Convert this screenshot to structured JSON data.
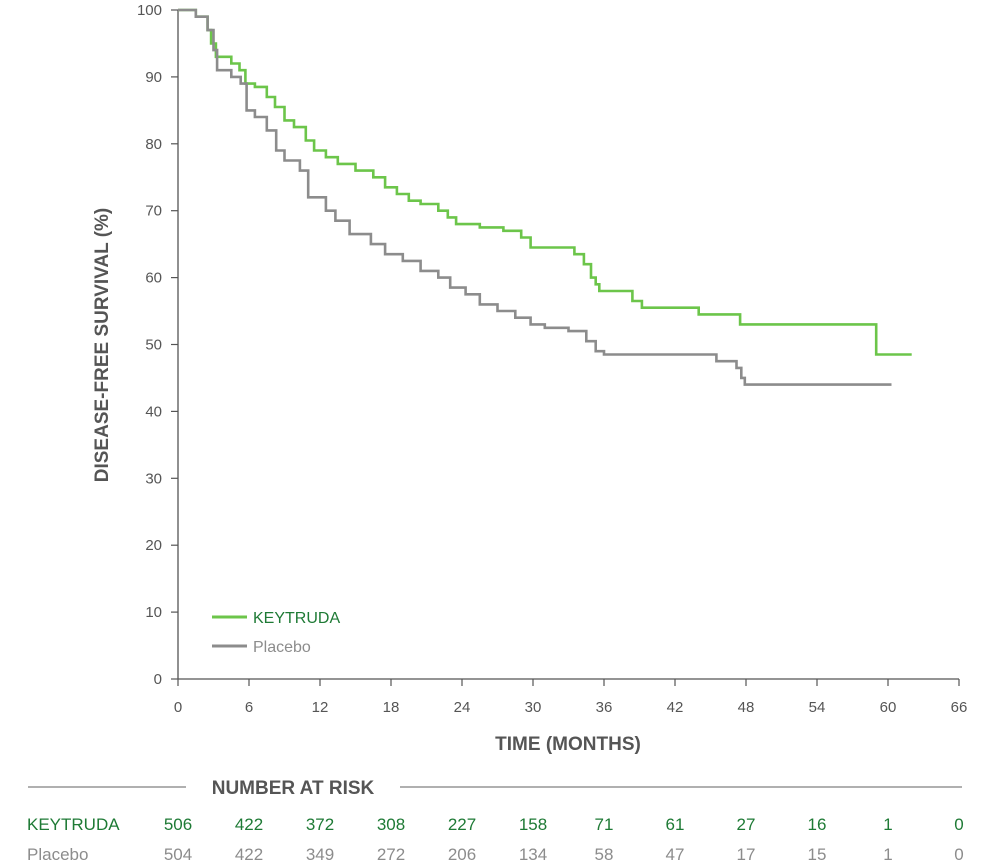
{
  "colors": {
    "keytruda": "#6cc54a",
    "placebo": "#8c8c8c",
    "keytruda_text": "#1e7a35",
    "axis": "#555555"
  },
  "chart_data": {
    "type": "line",
    "title": "",
    "xlabel": "TIME (MONTHS)",
    "ylabel": "DISEASE-FREE SURVIVAL (%)",
    "xlim": [
      0,
      66
    ],
    "ylim": [
      0,
      100
    ],
    "xticks": [
      0,
      6,
      12,
      18,
      24,
      30,
      36,
      42,
      48,
      54,
      60,
      66
    ],
    "yticks": [
      0,
      10,
      20,
      30,
      40,
      50,
      60,
      70,
      80,
      90,
      100
    ],
    "legend_position": "bottom-left",
    "series": [
      {
        "name": "KEYTRUDA",
        "step": true,
        "x": [
          0,
          1.5,
          2.5,
          2.8,
          3.2,
          4.5,
          5.2,
          5.7,
          6.5,
          7.5,
          8.2,
          9.0,
          9.8,
          10.8,
          11.5,
          12.5,
          13.5,
          15.0,
          16.5,
          17.5,
          18.5,
          19.5,
          20.5,
          22.0,
          22.8,
          23.5,
          25.5,
          27.5,
          29.0,
          29.8,
          31.5,
          33.5,
          34.3,
          34.9,
          35.3,
          35.6,
          36.4,
          38.4,
          39.2,
          44.0,
          47.5,
          59.0,
          62.0
        ],
        "y": [
          100,
          99,
          97,
          95,
          93,
          92,
          91,
          89,
          88.5,
          87,
          85.5,
          83.5,
          82.5,
          80.5,
          79,
          78,
          77,
          76,
          75,
          73.5,
          72.5,
          71.5,
          71,
          70,
          69,
          68,
          67.5,
          67,
          66,
          64.5,
          64.5,
          63.5,
          62,
          60,
          59,
          58,
          58,
          56.5,
          55.5,
          54.5,
          53,
          48.5,
          48.5
        ]
      },
      {
        "name": "Placebo",
        "step": true,
        "x": [
          0,
          1.5,
          2.5,
          3.0,
          3.3,
          4.5,
          5.3,
          5.8,
          6.5,
          7.5,
          8.3,
          9.0,
          10.3,
          11.0,
          12.5,
          13.3,
          14.5,
          16.3,
          17.5,
          19.0,
          20.5,
          22.0,
          23.0,
          24.3,
          25.5,
          27.0,
          28.5,
          29.8,
          31.0,
          33.0,
          34.5,
          35.3,
          36.0,
          45.5,
          47.2,
          47.6,
          47.9,
          60.3
        ],
        "y": [
          100,
          99,
          97,
          94,
          91,
          90,
          89,
          85,
          84,
          82,
          79,
          77.5,
          76,
          72,
          70,
          68.5,
          66.5,
          65,
          63.5,
          62.5,
          61,
          60,
          58.5,
          57.5,
          56,
          55,
          54,
          53,
          52.5,
          52,
          50.5,
          49,
          48.5,
          47.5,
          46.5,
          45,
          44,
          44
        ]
      }
    ],
    "risk_table": {
      "title": "NUMBER AT RISK",
      "times": [
        0,
        6,
        12,
        18,
        24,
        30,
        36,
        42,
        48,
        54,
        60,
        66
      ],
      "rows": [
        {
          "label": "KEYTRUDA",
          "values": [
            "506",
            "422",
            "372",
            "308",
            "227",
            "158",
            "71",
            "61",
            "27",
            "16",
            "1",
            "0"
          ]
        },
        {
          "label": "Placebo",
          "values": [
            "504",
            "422",
            "349",
            "272",
            "206",
            "134",
            "58",
            "47",
            "17",
            "15",
            "1",
            "0"
          ]
        }
      ]
    }
  }
}
